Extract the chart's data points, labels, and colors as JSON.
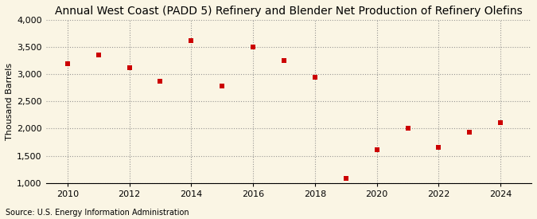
{
  "title": "Annual West Coast (PADD 5) Refinery and Blender Net Production of Refinery Olefins",
  "ylabel": "Thousand Barrels",
  "source": "Source: U.S. Energy Information Administration",
  "years": [
    2010,
    2011,
    2012,
    2013,
    2014,
    2015,
    2016,
    2017,
    2018,
    2019,
    2020,
    2021,
    2022,
    2023,
    2024
  ],
  "values": [
    3200,
    3350,
    3120,
    2870,
    3620,
    2780,
    3500,
    3250,
    2950,
    1080,
    1610,
    2000,
    1650,
    1940,
    2110
  ],
  "marker_color": "#cc0000",
  "marker_size": 25,
  "bg_color": "#faf5e4",
  "plot_bg_color": "#faf5e4",
  "ylim": [
    1000,
    4000
  ],
  "yticks": [
    1000,
    1500,
    2000,
    2500,
    3000,
    3500,
    4000
  ],
  "xticks": [
    2010,
    2012,
    2014,
    2016,
    2018,
    2020,
    2022,
    2024
  ],
  "xlim": [
    2009.3,
    2025.0
  ],
  "title_fontsize": 10,
  "label_fontsize": 8,
  "tick_fontsize": 8,
  "source_fontsize": 7
}
